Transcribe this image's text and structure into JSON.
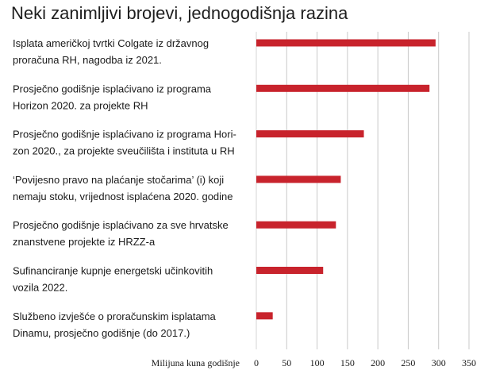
{
  "chart_data": {
    "type": "bar",
    "orientation": "horizontal",
    "title": "Neki zanimljivi brojevi, jednogodišnja razina",
    "xlabel": "Milijuna kuna godišnje",
    "ylabel": "",
    "xlim": [
      0,
      350
    ],
    "xticks": [
      0,
      50,
      100,
      150,
      200,
      250,
      300,
      350
    ],
    "grid": true,
    "bar_color": "#c8232c",
    "categories": [
      [
        "Isplata američkoj tvrtki Colgate iz državnog",
        "proračuna RH, nagodba iz 2021."
      ],
      [
        "Prosječno godišnje isplaćivano iz programa",
        "Horizon 2020. za projekte RH"
      ],
      [
        "Prosječno godišnje isplaćivano iz programa Hori-",
        "zon 2020., za projekte sveučilišta i instituta u RH"
      ],
      [
        "‘Povijesno pravo na plaćanje stočarima’ (i) koji",
        "nemaju stoku, vrijednost isplaćena 2020. godine"
      ],
      [
        "Prosječno godišnje isplaćivano za sve hrvatske",
        "znanstvene projekte iz HRZZ-a"
      ],
      [
        "Sufinanciranje kupnje energetski učinkovitih",
        "vozila 2022."
      ],
      [
        "Službeno izvješće o proračunskim isplatama",
        "Dinamu, prosječno godišnje (do 2017.)"
      ]
    ],
    "values": [
      295,
      285,
      177,
      139,
      131,
      110,
      27
    ]
  }
}
